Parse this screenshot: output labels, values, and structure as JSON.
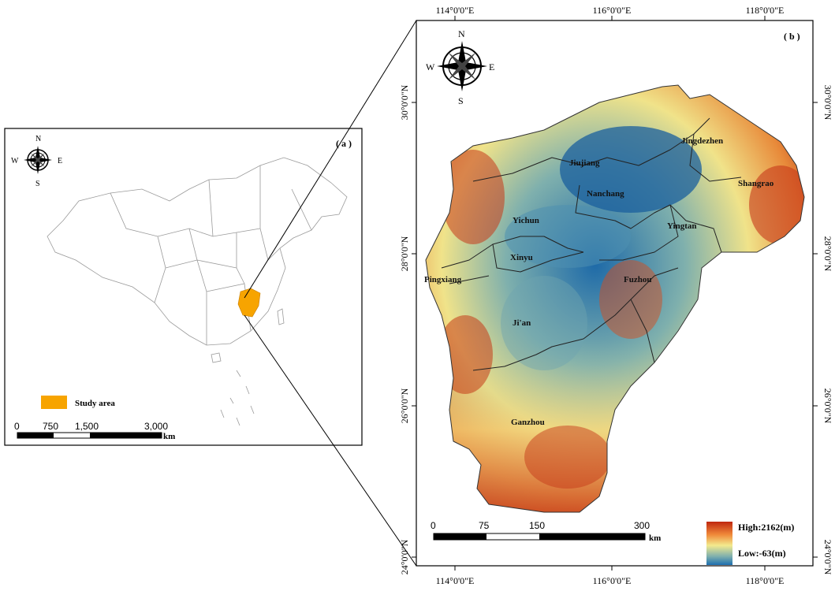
{
  "panel_a": {
    "label": "( a )",
    "compass": {
      "n": "N",
      "s": "S",
      "e": "E",
      "w": "W"
    },
    "legend_label": "Study area",
    "scale_ticks": [
      "0",
      "750",
      "1,500",
      "3,000"
    ],
    "scale_unit": "km",
    "colors": {
      "study_area": "#f7a400",
      "outline": "#9a9a9a"
    }
  },
  "panel_b": {
    "label": "( b )",
    "compass": {
      "n": "N",
      "s": "S",
      "e": "E",
      "w": "W"
    },
    "top_ticks": [
      "114°0'0\"E",
      "116°0'0\"E",
      "118°0'0\"E"
    ],
    "bottom_ticks": [
      "114°0'0\"E",
      "116°0'0\"E",
      "118°0'0\"E"
    ],
    "left_ticks": [
      "30°0'0\"N",
      "28°0'0\"N",
      "26°0'0\"N",
      "24°0'0\"N"
    ],
    "right_ticks": [
      "30°0'0\"N",
      "28°0'0\"N",
      "26°0'0\"N",
      "24°0'0\"N"
    ],
    "cities": [
      "Jiujiang",
      "Jingdezhen",
      "Shangrao",
      "Nanchang",
      "Yichun",
      "Yingtan",
      "Xinyu",
      "Pingxiang",
      "Fuzhou",
      "Ji'an",
      "Ganzhou"
    ],
    "legend_high": "High:2162(m)",
    "legend_low": "Low:-63(m)",
    "scale_ticks": [
      "0",
      "75",
      "150",
      "300"
    ],
    "scale_unit": "km",
    "colors": {
      "high": "#c0270f",
      "mid": "#f3ea8e",
      "low": "#1d6fb0"
    }
  }
}
